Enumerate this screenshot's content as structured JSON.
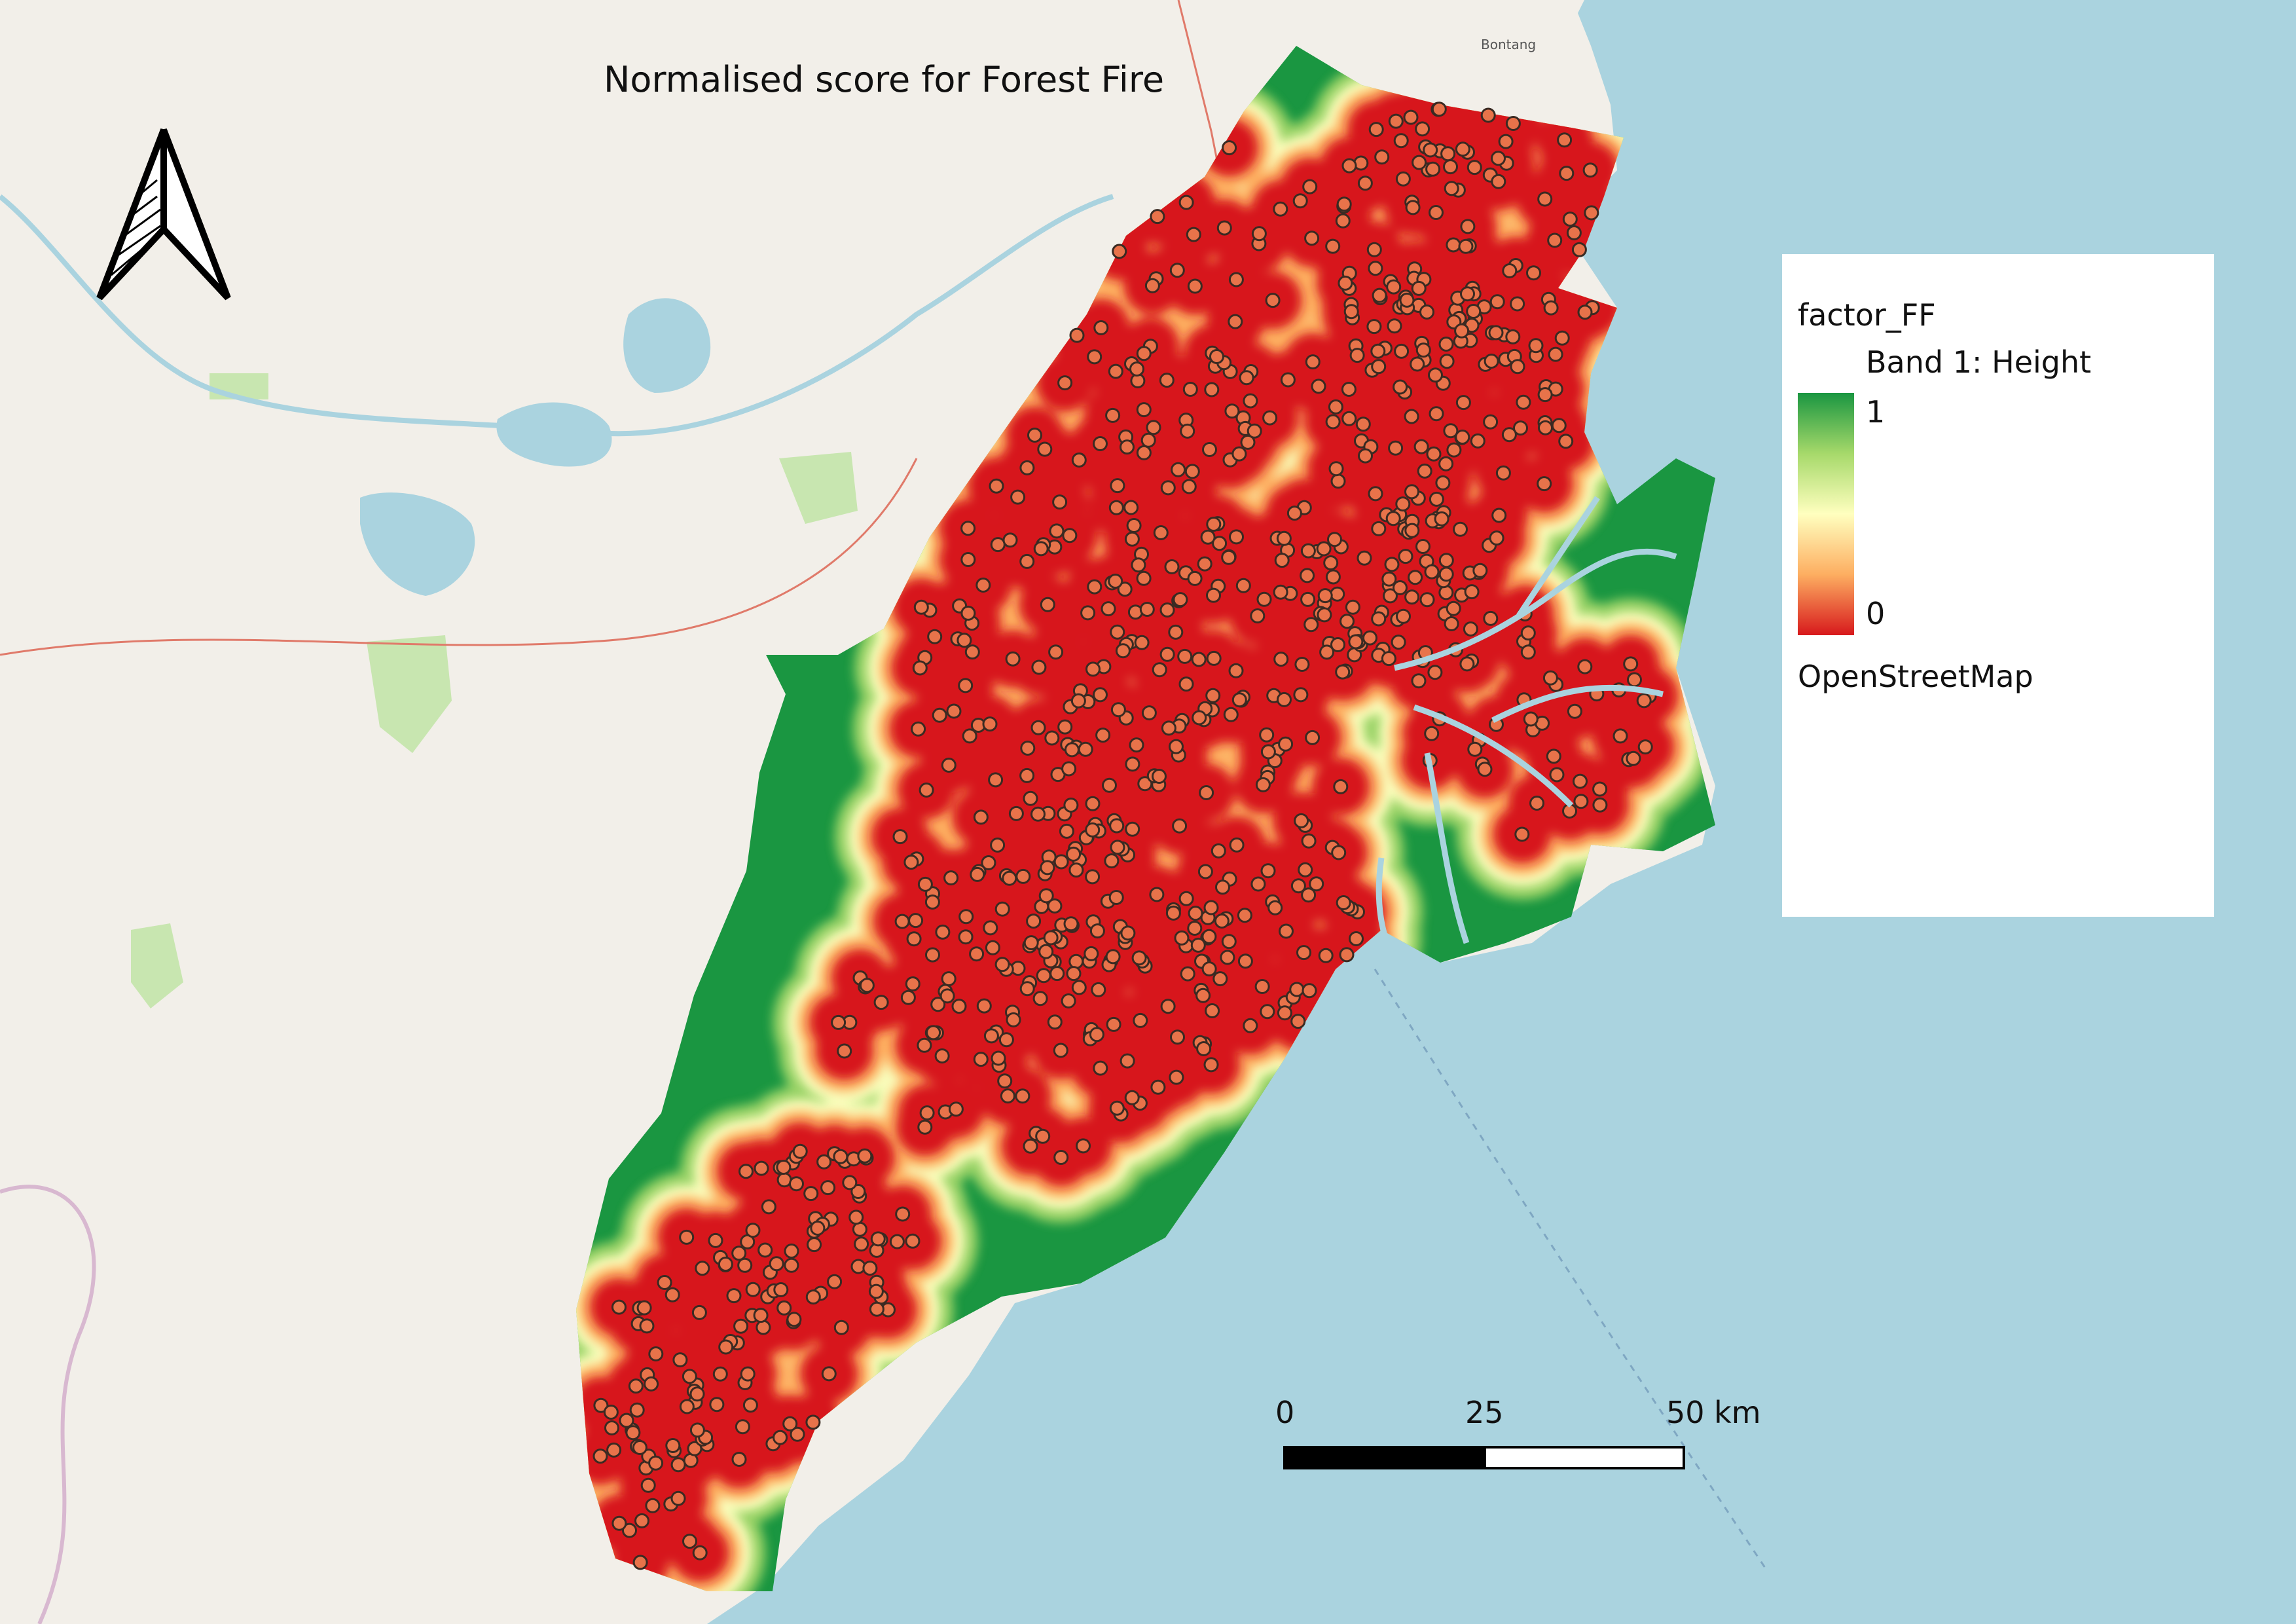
{
  "title": "Normalised score for Forest Fire",
  "basemap": {
    "place_labels": [
      "Bontang"
    ]
  },
  "legend": {
    "layer_name": "factor_FF",
    "band_label": "Band 1: Height",
    "max_label": "1",
    "min_label": "0",
    "basemap_label": "OpenStreetMap",
    "ramp_colors": [
      "#1a9641",
      "#a6d96a",
      "#ffffbf",
      "#fdae61",
      "#d7191c"
    ]
  },
  "scale_bar": {
    "labels": [
      "0",
      "25",
      "50 km"
    ]
  },
  "north_arrow": {
    "icon": "north-arrow-icon"
  },
  "colors": {
    "sea": "#aad3df",
    "land": "#f2efe9",
    "high_score": "#1a9641",
    "low_score": "#d7191c",
    "fire_point": "#e8734a"
  }
}
